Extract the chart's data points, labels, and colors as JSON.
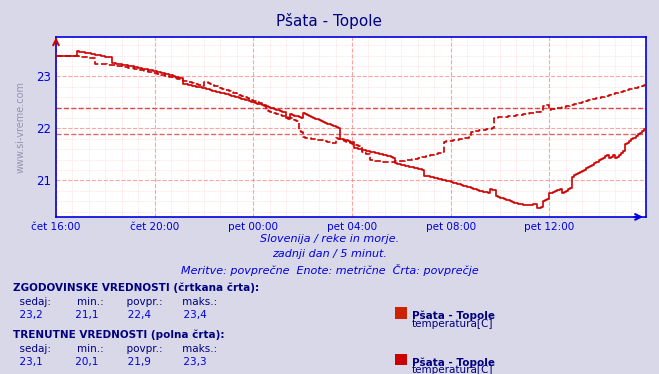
{
  "title": "Pšata - Topole",
  "subtitle1": "Slovenija / reke in morje.",
  "subtitle2": "zadnji dan / 5 minut.",
  "subtitle3": "Meritve: povprečne  Enote: metrične  Črta: povprečje",
  "xlabel_ticks": [
    "čet 16:00",
    "čet 20:00",
    "pet 00:00",
    "pet 04:00",
    "pet 08:00",
    "pet 12:00"
  ],
  "ylabel_ticks": [
    21,
    22,
    23
  ],
  "ylim": [
    20.3,
    23.75
  ],
  "xlim": [
    0,
    287
  ],
  "bg_color": "#d8d8e8",
  "plot_bg": "#ffffff",
  "line_color": "#cc0000",
  "axis_color": "#0000dd",
  "text_color": "#000080",
  "legend_section1": "ZGODOVINSKE VREDNOSTI (črtkana črta):",
  "legend_section2": "TRENUTNE VREDNOSTI (polna črta):",
  "leg_headers": [
    "  sedaj:",
    "  min.:",
    "  povpr.:",
    "  maks.:"
  ],
  "leg1_values": [
    "  23,2",
    "  21,1",
    "  22,4",
    "  23,4"
  ],
  "leg2_values": [
    "  23,1",
    "  20,1",
    "  21,9",
    "  23,3"
  ],
  "leg_station": "Pšata - Topole",
  "leg_param": "temperatura[C]",
  "avg_line_hist": 22.4,
  "avg_line_curr": 21.9,
  "tick_x_positions": [
    0,
    48,
    96,
    144,
    192,
    240
  ],
  "num_points": 288,
  "watermark": "www.si-vreme.com"
}
